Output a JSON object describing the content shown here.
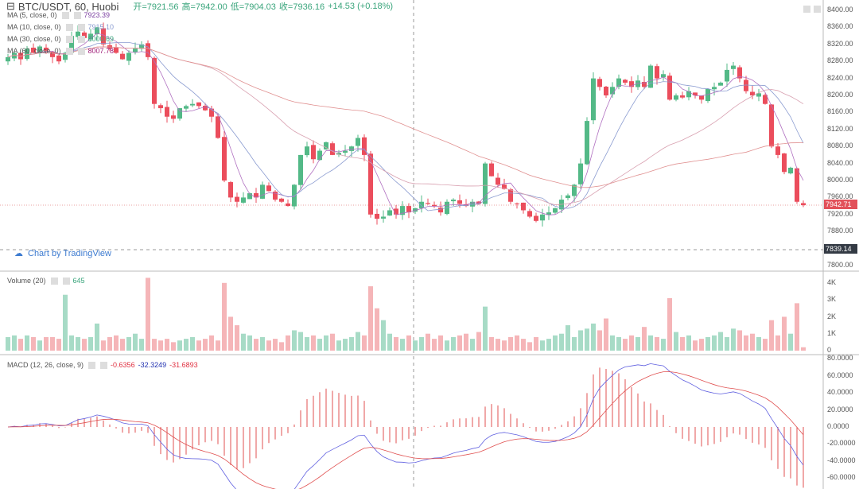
{
  "header": {
    "symbol": "BTC/USDT, 60, Huobi",
    "open": "开=7921.56",
    "high": "高=7942.00",
    "low": "低=7904.03",
    "close": "收=7936.16",
    "change": "+14.53 (+0.18%)"
  },
  "indicators": [
    {
      "label": "MA (5, close, 0)",
      "value": "7923.39",
      "color": "#7b3fa0"
    },
    {
      "label": "MA (10, close, 0)",
      "value": "7915.10",
      "color": "#8a9bd0"
    },
    {
      "label": "MA (30, close, 0)",
      "value": "8000.69",
      "color": "#3aa57c"
    },
    {
      "label": "MA (60, close, 0)",
      "value": "8007.78",
      "color": "#a0207a"
    }
  ],
  "volume": {
    "label": "Volume (20)",
    "value": "645"
  },
  "macd": {
    "label": "MACD (12, 26, close, 9)",
    "hist": "-0.6356",
    "macd": "-32.3249",
    "signal": "-31.6893"
  },
  "watermark": "Chart by TradingView",
  "last_price": "7942.71",
  "crosshair_price": "7839.14",
  "colors": {
    "up": "#53b987",
    "down": "#eb4d5c",
    "vol_up": "#a7dbc6",
    "vol_down": "#f5b5b8"
  },
  "chart_data": {
    "type": "candlestick",
    "price_axis": [
      "8400.00",
      "8360.00",
      "8320.00",
      "8280.00",
      "8240.00",
      "8200.00",
      "8160.00",
      "8120.00",
      "8080.00",
      "8040.00",
      "8000.00",
      "7960.00",
      "7920.00",
      "7880.00",
      "7800.00"
    ],
    "price_range": [
      7800,
      8400
    ],
    "volume_axis": [
      "4K",
      "3K",
      "2K",
      "1K",
      "0"
    ],
    "macd_axis": [
      "80.0000",
      "60.0000",
      "40.0000",
      "20.0000",
      "0.0000",
      "-20.0000",
      "-40.0000",
      "-60.0000"
    ],
    "closes": [
      8290,
      8300,
      8285,
      8310,
      8300,
      8315,
      8305,
      8290,
      8280,
      8300,
      8340,
      8350,
      8335,
      8345,
      8360,
      8320,
      8310,
      8300,
      8285,
      8300,
      8310,
      8320,
      8290,
      8180,
      8170,
      8150,
      8145,
      8170,
      8175,
      8180,
      8175,
      8165,
      8150,
      8100,
      8000,
      7960,
      7950,
      7960,
      7970,
      7960,
      7990,
      7975,
      7955,
      7950,
      7940,
      7990,
      8060,
      8080,
      8050,
      8070,
      8090,
      8060,
      8065,
      8070,
      8080,
      8100,
      8060,
      7920,
      7910,
      7915,
      7930,
      7920,
      7940,
      7925,
      7935,
      7950,
      7945,
      7940,
      7925,
      7950,
      7955,
      7945,
      7940,
      7950,
      7945,
      8040,
      8010,
      7990,
      7980,
      7950,
      7945,
      7930,
      7915,
      7905,
      7920,
      7925,
      7935,
      7955,
      7965,
      7990,
      8040,
      8140,
      8240,
      8220,
      8200,
      8220,
      8240,
      8230,
      8220,
      8235,
      8220,
      8270,
      8240,
      8250,
      8190,
      8200,
      8195,
      8210,
      8200,
      8190,
      8215,
      8220,
      8230,
      8260,
      8270,
      8240,
      8210,
      8200,
      8205,
      8180,
      8080,
      8060,
      8020,
      8030,
      7950,
      7942
    ],
    "volumes_k": [
      0.8,
      0.9,
      0.7,
      0.9,
      0.8,
      0.6,
      0.8,
      0.8,
      0.7,
      3.3,
      0.9,
      0.8,
      0.7,
      0.8,
      1.6,
      0.6,
      0.8,
      0.9,
      0.7,
      0.8,
      1.0,
      0.7,
      4.3,
      0.7,
      0.6,
      0.7,
      0.5,
      0.6,
      0.7,
      0.8,
      0.6,
      0.7,
      0.9,
      0.6,
      4.0,
      2.0,
      1.5,
      1.0,
      0.9,
      0.7,
      0.8,
      0.6,
      0.7,
      0.5,
      0.9,
      1.2,
      1.1,
      0.8,
      0.9,
      0.7,
      0.9,
      1.0,
      0.6,
      0.7,
      0.8,
      1.1,
      0.9,
      3.8,
      2.5,
      1.8,
      1.0,
      0.8,
      0.7,
      0.9,
      0.6,
      0.8,
      1.0,
      0.7,
      0.9,
      0.6,
      0.8,
      0.9,
      1.0,
      0.7,
      1.1,
      2.6,
      0.8,
      0.7,
      0.6,
      0.8,
      0.9,
      0.7,
      0.5,
      0.8,
      0.6,
      0.7,
      0.9,
      1.0,
      1.5,
      0.8,
      1.2,
      1.3,
      1.6,
      1.2,
      1.9,
      0.9,
      0.8,
      0.7,
      0.9,
      0.8,
      1.4,
      0.9,
      0.8,
      0.7,
      3.1,
      1.1,
      0.8,
      0.9,
      0.6,
      0.7,
      0.8,
      0.9,
      1.1,
      0.8,
      1.3,
      1.2,
      0.9,
      1.0,
      0.8,
      0.7,
      1.8,
      0.9,
      2.0,
      1.0,
      2.8,
      0.2
    ]
  }
}
